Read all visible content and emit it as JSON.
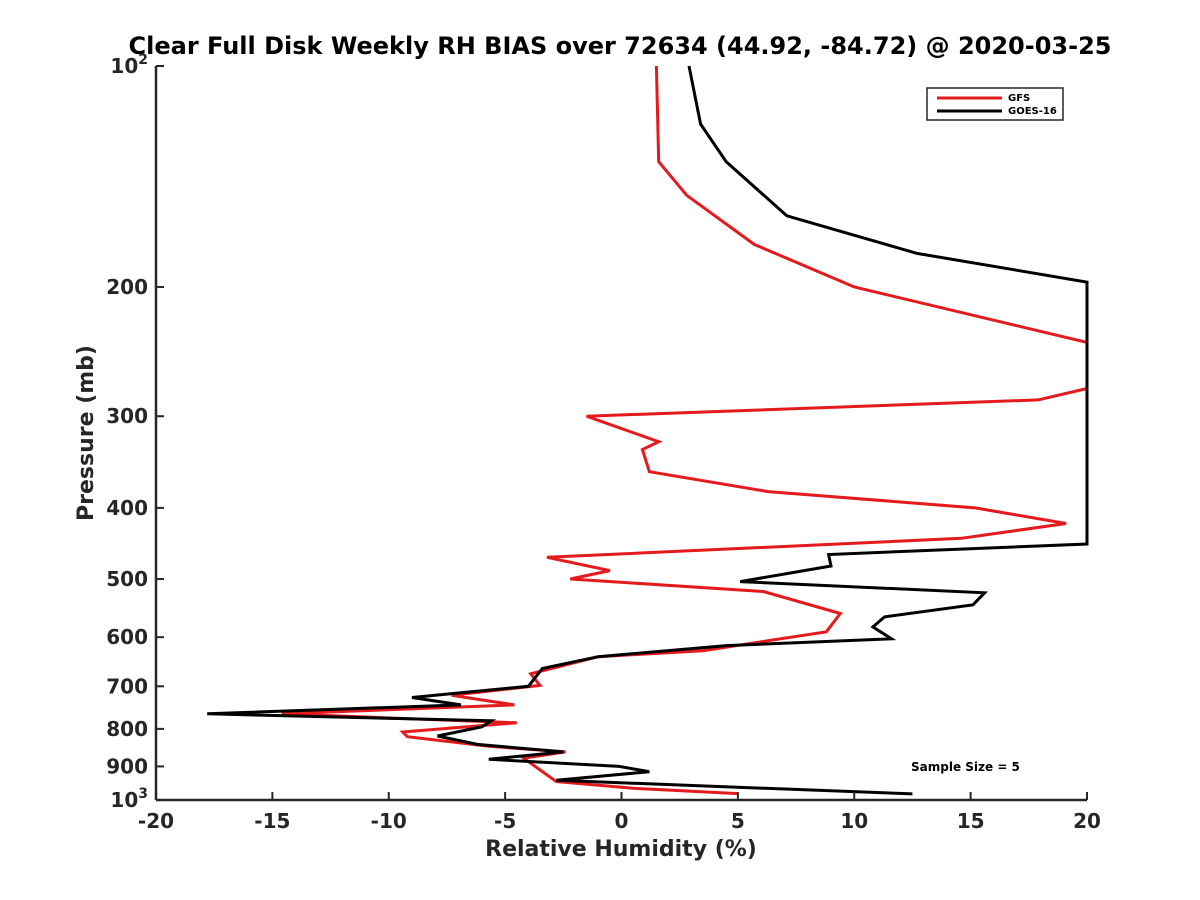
{
  "chart_data": {
    "type": "line",
    "title": "Clear Full Disk Weekly RH BIAS over 72634 (44.92, -84.72) @ 2020-03-25",
    "xlabel": "Relative Humidity (%)",
    "ylabel": "Pressure (mb)",
    "xlim": [
      -20,
      20
    ],
    "ylim": [
      100,
      1000
    ],
    "yscale": "log",
    "y_reversed": true,
    "xticks": [
      -20,
      -15,
      -10,
      -5,
      0,
      5,
      10,
      15,
      20
    ],
    "xtick_labels": [
      "-20",
      "-15",
      "-10",
      "-5",
      "0",
      "5",
      "10",
      "15",
      "20"
    ],
    "yticks": [
      {
        "value": 100,
        "base": "10",
        "exp": "2"
      },
      {
        "value": 200,
        "label": "200"
      },
      {
        "value": 300,
        "label": "300"
      },
      {
        "value": 400,
        "label": "400"
      },
      {
        "value": 500,
        "label": "500"
      },
      {
        "value": 600,
        "label": "600"
      },
      {
        "value": 700,
        "label": "700"
      },
      {
        "value": 800,
        "label": "800"
      },
      {
        "value": 900,
        "label": "900"
      },
      {
        "value": 1000,
        "base": "10",
        "exp": "3"
      }
    ],
    "grid": false,
    "legend_position": "top-right",
    "annotation": "Sample Size = 5",
    "series": [
      {
        "name": "GFS",
        "color": "#e41a1c",
        "points": [
          [
            1.5,
            100
          ],
          [
            1.6,
            135
          ],
          [
            2.8,
            150
          ],
          [
            5.7,
            175
          ],
          [
            10.0,
            200
          ],
          [
            20.0,
            238
          ],
          [
            20.0,
            275
          ],
          [
            17.9,
            285
          ],
          [
            -1.5,
            300
          ],
          [
            1.6,
            325
          ],
          [
            0.9,
            333
          ],
          [
            1.2,
            357
          ],
          [
            6.3,
            380
          ],
          [
            15.2,
            400
          ],
          [
            19.1,
            420
          ],
          [
            14.6,
            440
          ],
          [
            -3.2,
            467
          ],
          [
            -0.5,
            487
          ],
          [
            -2.2,
            500
          ],
          [
            6.1,
            520
          ],
          [
            9.4,
            557
          ],
          [
            8.8,
            590
          ],
          [
            3.5,
            626
          ],
          [
            -1.0,
            638
          ],
          [
            -3.9,
            673
          ],
          [
            -3.5,
            698
          ],
          [
            -7.3,
            720
          ],
          [
            -4.6,
            742
          ],
          [
            -14.6,
            763
          ],
          [
            -4.5,
            785
          ],
          [
            -9.4,
            808
          ],
          [
            -9.2,
            820
          ],
          [
            -5.7,
            845
          ],
          [
            -2.4,
            860
          ],
          [
            -4.2,
            877
          ],
          [
            -2.8,
            944
          ],
          [
            0.5,
            964
          ],
          [
            5.0,
            980
          ]
        ]
      },
      {
        "name": "GOES-16",
        "color": "#000000",
        "points": [
          [
            2.9,
            100
          ],
          [
            3.4,
            120
          ],
          [
            4.5,
            135
          ],
          [
            7.1,
            160
          ],
          [
            12.7,
            180
          ],
          [
            20.0,
            197
          ],
          [
            20.0,
            448
          ],
          [
            8.9,
            463
          ],
          [
            9.0,
            480
          ],
          [
            5.1,
            504
          ],
          [
            15.6,
            522
          ],
          [
            15.1,
            542
          ],
          [
            11.3,
            563
          ],
          [
            10.8,
            581
          ],
          [
            11.6,
            603
          ],
          [
            4.5,
            616
          ],
          [
            -1.0,
            638
          ],
          [
            -3.4,
            662
          ],
          [
            -4.0,
            700
          ],
          [
            -9.0,
            725
          ],
          [
            -6.9,
            742
          ],
          [
            -17.8,
            763
          ],
          [
            -5.6,
            780
          ],
          [
            -6.0,
            795
          ],
          [
            -7.9,
            818
          ],
          [
            -6.2,
            840
          ],
          [
            -2.5,
            860
          ],
          [
            -5.7,
            880
          ],
          [
            -0.1,
            900
          ],
          [
            1.2,
            915
          ],
          [
            -2.8,
            940
          ],
          [
            12.5,
            981
          ]
        ]
      }
    ]
  }
}
